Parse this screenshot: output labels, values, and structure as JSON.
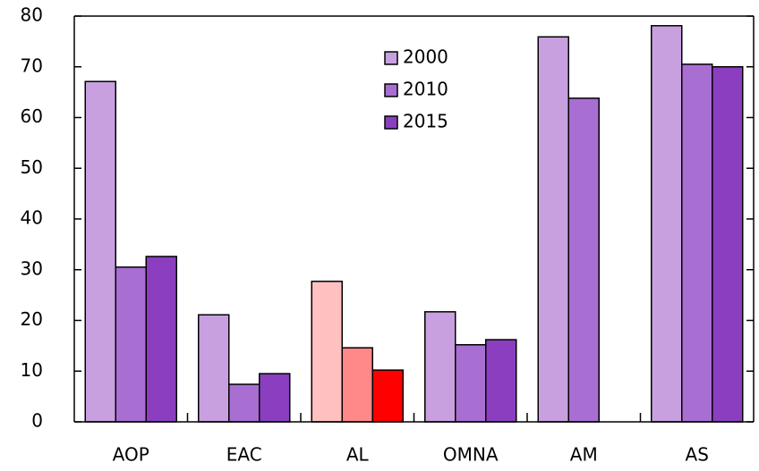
{
  "chart_data": {
    "type": "bar",
    "categories": [
      "AOP",
      "EAC",
      "AL",
      "OMNA",
      "AM",
      "AS"
    ],
    "series": [
      {
        "name": "2000",
        "color": "#c8a0e0",
        "colors": [
          "#c8a0e0",
          "#c8a0e0",
          "#ffc0c0",
          "#c8a0e0",
          "#c8a0e0",
          "#c8a0e0"
        ],
        "values": [
          67.1,
          21.1,
          27.7,
          21.7,
          75.9,
          78.1
        ]
      },
      {
        "name": "2010",
        "color": "#a96ed2",
        "colors": [
          "#a96ed2",
          "#a96ed2",
          "#ff8888",
          "#a96ed2",
          "#a96ed2",
          "#a96ed2"
        ],
        "values": [
          30.5,
          7.4,
          14.6,
          15.2,
          63.8,
          70.5
        ]
      },
      {
        "name": "2015",
        "color": "#8b3fc0",
        "colors": [
          "#8b3fc0",
          "#8b3fc0",
          "#ff0000",
          "#8b3fc0",
          null,
          "#8b3fc0"
        ],
        "values": [
          32.6,
          9.5,
          10.2,
          16.2,
          null,
          70.0
        ]
      }
    ],
    "ylim": [
      0,
      80
    ],
    "yticks": [
      0,
      10,
      20,
      30,
      40,
      50,
      60,
      70,
      80
    ],
    "grid": false
  }
}
